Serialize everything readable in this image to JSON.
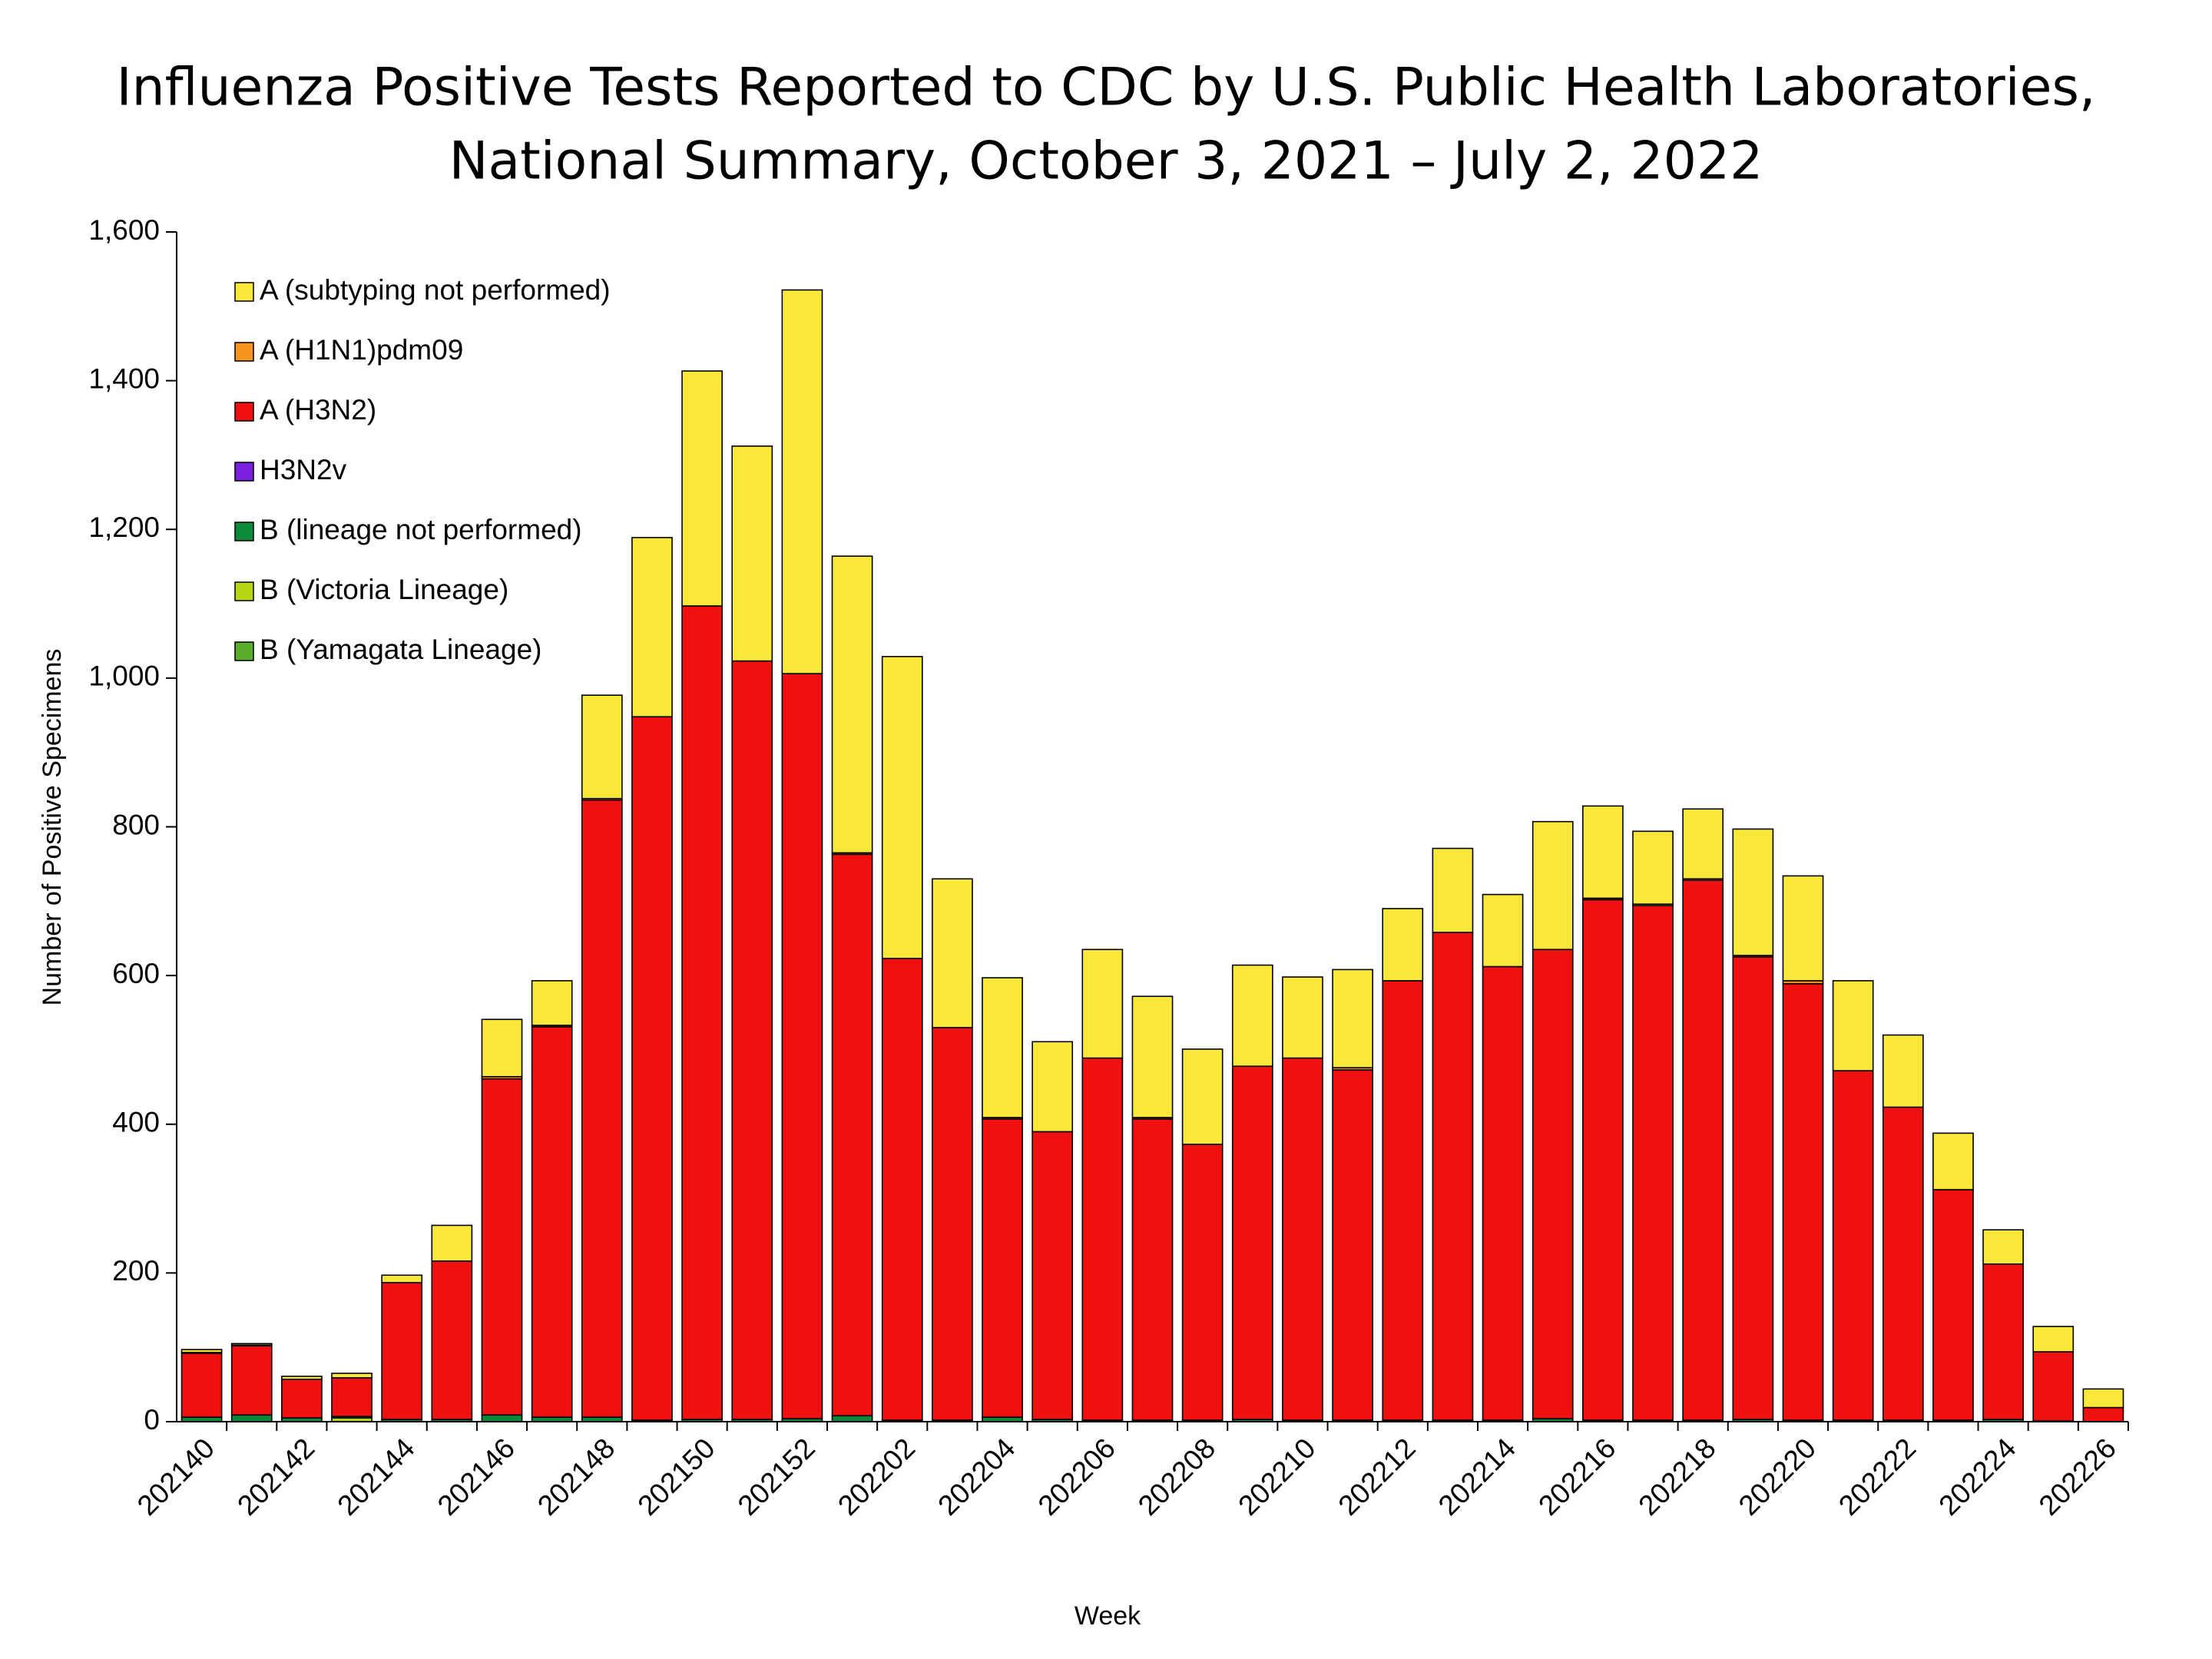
{
  "chart_data": {
    "type": "stacked_bar",
    "title": [
      "Influenza Positive Tests Reported to CDC by U.S. Public Health Laboratories,",
      "National Summary, October 3, 2021 – July 2, 2022"
    ],
    "x_label": "Week",
    "y_label": "Number of Positive Specimens",
    "categories": [
      "202140",
      null,
      "202142",
      null,
      "202144",
      null,
      "202146",
      null,
      "202148",
      null,
      "202150",
      null,
      "202152",
      null,
      "202202",
      null,
      "202204",
      null,
      "202206",
      null,
      "202208",
      null,
      "202210",
      null,
      "202212",
      null,
      "202214",
      null,
      "202216",
      null,
      "202218",
      null,
      "202220",
      null,
      "202222",
      null,
      "202224",
      null,
      "202226"
    ],
    "ylim": [
      0,
      1600
    ],
    "yticks": [
      0,
      200,
      400,
      600,
      800,
      {
        "value": 1000,
        "label": "1,000"
      },
      {
        "value": 1200,
        "label": "1,200"
      },
      {
        "value": 1400,
        "label": "1,400"
      },
      {
        "value": 1600,
        "label": "1,600"
      }
    ],
    "series": [
      {
        "name": "A (subtyping not performed)",
        "color": "#f9e839",
        "values": [
          4,
          2,
          4,
          6,
          10,
          48,
          77,
          60,
          139,
          241,
          316,
          289,
          516,
          399,
          406,
          200,
          188,
          121,
          146,
          163,
          128,
          136,
          109,
          132,
          97,
          113,
          97,
          172,
          124,
          98,
          94,
          170,
          141,
          121,
          97,
          76,
          46,
          34,
          25
        ]
      },
      {
        "name": "A (H1N1)pdm09",
        "color": "#f7941d",
        "values": [
          1,
          1,
          0,
          0,
          0,
          0,
          3,
          2,
          2,
          0,
          0,
          0,
          0,
          2,
          0,
          0,
          2,
          0,
          0,
          2,
          0,
          0,
          0,
          3,
          0,
          0,
          0,
          0,
          2,
          2,
          2,
          2,
          4,
          0,
          0,
          0,
          0,
          0,
          0
        ]
      },
      {
        "name": "A (H3N2)",
        "color": "#f01010",
        "values": [
          86,
          93,
          52,
          52,
          184,
          213,
          452,
          525,
          830,
          946,
          1094,
          1020,
          1002,
          755,
          621,
          528,
          401,
          387,
          487,
          405,
          371,
          475,
          487,
          471,
          591,
          656,
          610,
          631,
          700,
          692,
          726,
          622,
          587,
          470,
          421,
          310,
          209,
          93,
          19
        ]
      },
      {
        "name": "H3N2v",
        "color": "#7b1fe0",
        "values": [
          0,
          0,
          0,
          0,
          0,
          0,
          0,
          0,
          0,
          0,
          0,
          0,
          0,
          0,
          0,
          0,
          0,
          0,
          0,
          0,
          0,
          0,
          0,
          0,
          0,
          0,
          0,
          0,
          0,
          0,
          0,
          0,
          0,
          0,
          0,
          0,
          0,
          0,
          0
        ]
      },
      {
        "name": "B (lineage not performed)",
        "color": "#0b8a3a",
        "values": [
          6,
          9,
          5,
          2,
          3,
          3,
          9,
          6,
          6,
          2,
          3,
          3,
          4,
          8,
          2,
          2,
          6,
          3,
          2,
          2,
          2,
          3,
          2,
          2,
          2,
          2,
          2,
          4,
          2,
          2,
          2,
          3,
          2,
          2,
          2,
          2,
          3,
          1,
          0
        ]
      },
      {
        "name": "B (Victoria Lineage)",
        "color": "#b8d611",
        "values": [
          0,
          0,
          0,
          5,
          0,
          0,
          0,
          0,
          0,
          0,
          0,
          0,
          0,
          0,
          0,
          0,
          0,
          0,
          0,
          0,
          0,
          0,
          0,
          0,
          0,
          0,
          0,
          0,
          0,
          0,
          0,
          0,
          0,
          0,
          0,
          0,
          0,
          0,
          0
        ]
      },
      {
        "name": "B (Yamagata Lineage)",
        "color": "#5aab2a",
        "values": [
          0,
          0,
          0,
          0,
          0,
          0,
          0,
          0,
          0,
          0,
          0,
          0,
          0,
          0,
          0,
          0,
          0,
          0,
          0,
          0,
          0,
          0,
          0,
          0,
          0,
          0,
          0,
          0,
          0,
          0,
          0,
          0,
          0,
          0,
          0,
          0,
          0,
          0,
          0
        ]
      }
    ],
    "legend": "upper left",
    "grid": false
  }
}
